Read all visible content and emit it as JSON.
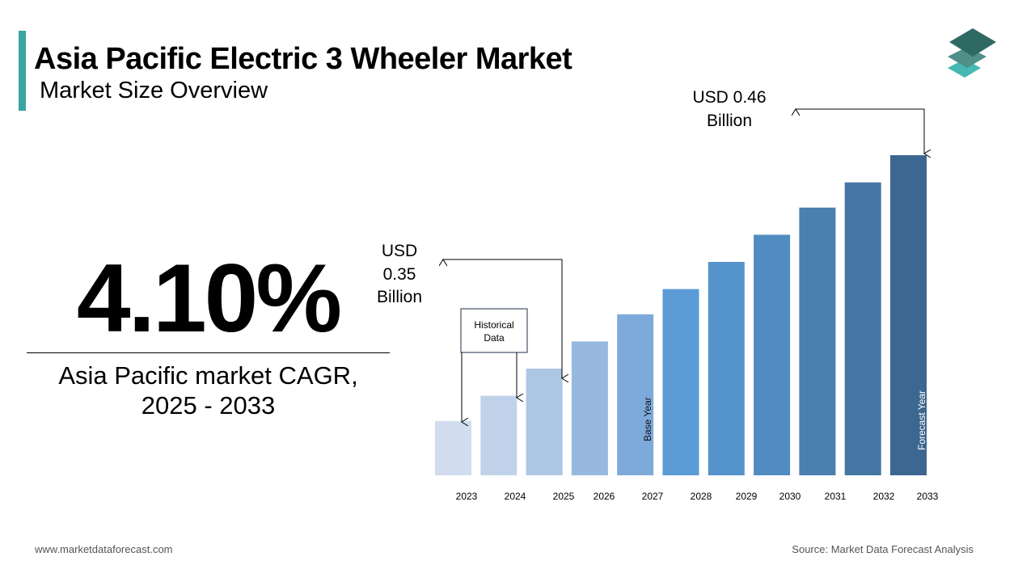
{
  "header": {
    "title": "Asia Pacific Electric 3 Wheeler Market",
    "subtitle": "Market Size Overview"
  },
  "highlight": {
    "cagr_value": "4.10%",
    "cagr_label_line1": "Asia Pacific market CAGR,",
    "cagr_label_line2": "2025 - 2033"
  },
  "footer": {
    "website": "www.marketdataforecast.com",
    "source": "Source: Market Data Forecast Analysis"
  },
  "logo": {
    "icon": "stacked-layers-logo-icon",
    "colors": [
      "#2e6a63",
      "#4f8f88",
      "#47b8b3"
    ]
  },
  "chart_data": {
    "type": "bar",
    "title": "",
    "xlabel": "",
    "ylabel": "",
    "categories": [
      "2023",
      "2024",
      "2025",
      "2026",
      "2027",
      "2028",
      "2029",
      "2030",
      "2031",
      "2032",
      "2033"
    ],
    "values": [
      0.323,
      0.336,
      0.35,
      0.364,
      0.378,
      0.391,
      0.405,
      0.419,
      0.433,
      0.446,
      0.46
    ],
    "units": "USD Billion",
    "ylim": [
      0.295,
      0.46
    ],
    "grid": false,
    "axis_visible": false,
    "colors": [
      "#d1ddee",
      "#c0d2ea",
      "#adc6e4",
      "#98b9df",
      "#7eaadb",
      "#5b9bd5",
      "#5494cb",
      "#508cc0",
      "#4a80b0",
      "#4576a3",
      "#3c6790"
    ],
    "annotations": {
      "start_value": {
        "line1": "USD",
        "line2": "0.35",
        "line3": "Billion",
        "year": "2025"
      },
      "end_value": {
        "line1": "USD 0.46",
        "line2": "Billion",
        "year": "2033"
      },
      "historical": {
        "line1": "Historical",
        "line2": "Data"
      },
      "base_year": "Base Year",
      "forecast_year": "Forecast Year"
    }
  }
}
